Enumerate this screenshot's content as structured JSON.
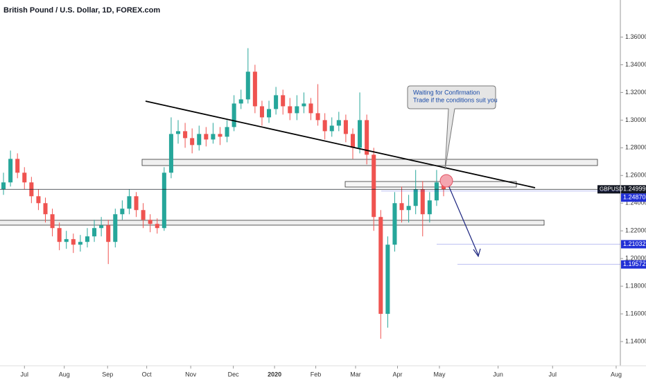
{
  "chart_data": {
    "type": "candlestick",
    "title": "British Pound / U.S. Dollar, 1D, FOREX.com",
    "open": [
      1.25,
      1.255,
      1.272,
      1.262,
      1.255,
      1.245,
      1.24,
      1.232,
      1.222,
      1.212,
      1.214,
      1.21,
      1.212,
      1.216,
      1.222,
      1.224,
      1.212,
      1.232,
      1.236,
      1.245,
      1.235,
      1.228,
      1.225,
      1.222,
      1.262,
      1.29,
      1.292,
      1.287,
      1.282,
      1.29,
      1.286,
      1.29,
      1.288,
      1.295,
      1.312,
      1.315,
      1.335,
      1.31,
      1.302,
      1.308,
      1.318,
      1.31,
      1.305,
      1.31,
      1.312,
      1.305,
      1.3,
      1.292,
      1.296,
      1.3,
      1.29,
      1.28,
      1.3,
      1.275,
      1.23,
      1.16,
      1.21,
      1.24,
      1.235,
      1.238,
      1.25,
      1.232,
      1.242,
      1.255
    ],
    "high": [
      1.262,
      1.278,
      1.276,
      1.266,
      1.259,
      1.25,
      1.244,
      1.236,
      1.226,
      1.22,
      1.218,
      1.217,
      1.222,
      1.228,
      1.23,
      1.228,
      1.236,
      1.242,
      1.25,
      1.248,
      1.24,
      1.232,
      1.229,
      1.266,
      1.302,
      1.3,
      1.298,
      1.294,
      1.296,
      1.295,
      1.298,
      1.295,
      1.3,
      1.318,
      1.322,
      1.352,
      1.34,
      1.314,
      1.314,
      1.324,
      1.322,
      1.316,
      1.318,
      1.32,
      1.316,
      1.326,
      1.305,
      1.302,
      1.306,
      1.304,
      1.294,
      1.32,
      1.304,
      1.28,
      1.235,
      1.216,
      1.248,
      1.252,
      1.246,
      1.264,
      1.256,
      1.248,
      1.264,
      1.26
    ],
    "low": [
      1.246,
      1.252,
      1.258,
      1.25,
      1.24,
      1.235,
      1.226,
      1.216,
      1.206,
      1.207,
      1.204,
      1.205,
      1.208,
      1.212,
      1.216,
      1.196,
      1.208,
      1.228,
      1.232,
      1.23,
      1.222,
      1.219,
      1.218,
      1.22,
      1.258,
      1.283,
      1.28,
      1.276,
      1.278,
      1.281,
      1.283,
      1.282,
      1.284,
      1.292,
      1.308,
      1.312,
      1.305,
      1.296,
      1.298,
      1.304,
      1.304,
      1.3,
      1.3,
      1.305,
      1.3,
      1.296,
      1.286,
      1.288,
      1.292,
      1.284,
      1.272,
      1.276,
      1.268,
      1.22,
      1.142,
      1.15,
      1.205,
      1.226,
      1.226,
      1.232,
      1.216,
      1.226,
      1.238,
      1.245
    ],
    "close": [
      1.255,
      1.272,
      1.262,
      1.255,
      1.245,
      1.24,
      1.232,
      1.222,
      1.212,
      1.214,
      1.21,
      1.212,
      1.216,
      1.222,
      1.224,
      1.212,
      1.232,
      1.236,
      1.245,
      1.235,
      1.228,
      1.225,
      1.222,
      1.262,
      1.29,
      1.292,
      1.287,
      1.282,
      1.29,
      1.286,
      1.29,
      1.288,
      1.295,
      1.312,
      1.315,
      1.335,
      1.31,
      1.302,
      1.308,
      1.318,
      1.31,
      1.305,
      1.31,
      1.312,
      1.305,
      1.3,
      1.292,
      1.296,
      1.3,
      1.29,
      1.28,
      1.3,
      1.275,
      1.23,
      1.16,
      1.21,
      1.24,
      1.235,
      1.238,
      1.25,
      1.232,
      1.242,
      1.255,
      1.25
    ],
    "up_color": "#26a69a",
    "down_color": "#ef5350",
    "xlim": [
      -0.5,
      88.3
    ],
    "xticks": [
      {
        "value": 3,
        "label": "Jul"
      },
      {
        "value": 8.7,
        "label": "Aug"
      },
      {
        "value": 14.9,
        "label": "Sep"
      },
      {
        "value": 20.5,
        "label": "Oct"
      },
      {
        "value": 26.8,
        "label": "Nov"
      },
      {
        "value": 32.9,
        "label": "Dec"
      },
      {
        "value": 38.8,
        "label": "2020"
      },
      {
        "value": 44.7,
        "label": "Feb"
      },
      {
        "value": 50.4,
        "label": "Mar"
      },
      {
        "value": 56.4,
        "label": "Apr"
      },
      {
        "value": 62.4,
        "label": "May"
      },
      {
        "value": 70.8,
        "label": "Jun"
      },
      {
        "value": 78.6,
        "label": "Jul"
      },
      {
        "value": 87.7,
        "label": "Aug"
      }
    ],
    "ylim": [
      1.1225,
      1.3868
    ],
    "yticks": [
      {
        "value": 1.14,
        "label": "1.14000"
      },
      {
        "value": 1.16,
        "label": "1.16000"
      },
      {
        "value": 1.18,
        "label": "1.18000"
      },
      {
        "value": 1.2,
        "label": "1.20000"
      },
      {
        "value": 1.22,
        "label": "1.22000"
      },
      {
        "value": 1.24,
        "label": "1.24000"
      },
      {
        "value": 1.26,
        "label": "1.26000"
      },
      {
        "value": 1.28,
        "label": "1.28000"
      },
      {
        "value": 1.3,
        "label": "1.30000"
      },
      {
        "value": 1.32,
        "label": "1.32000"
      },
      {
        "value": 1.34,
        "label": "1.34000"
      },
      {
        "value": 1.36,
        "label": "1.36000"
      }
    ],
    "grid": false,
    "price_labels": [
      {
        "value": 1.24999,
        "label": "1.24999",
        "name": "GBPUSD",
        "color": "#131722"
      },
      {
        "value": 1.2487,
        "label": "1.24870",
        "color": "#2130d6"
      },
      {
        "value": 1.21032,
        "label": "1.21032",
        "color": "#2130d6"
      },
      {
        "value": 1.19572,
        "label": "1.19572",
        "color": "#2130d6"
      }
    ],
    "annotation": [
      "Waiting for Confirmation",
      "Trade if the conditions suit you"
    ]
  }
}
